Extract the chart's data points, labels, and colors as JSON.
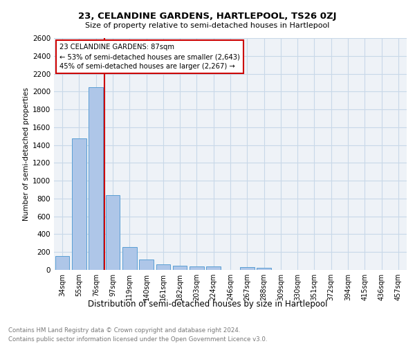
{
  "title": "23, CELANDINE GARDENS, HARTLEPOOL, TS26 0ZJ",
  "subtitle": "Size of property relative to semi-detached houses in Hartlepool",
  "xlabel_below": "Distribution of semi-detached houses by size in Hartlepool",
  "ylabel": "Number of semi-detached properties",
  "categories": [
    "34sqm",
    "55sqm",
    "76sqm",
    "97sqm",
    "119sqm",
    "140sqm",
    "161sqm",
    "182sqm",
    "203sqm",
    "224sqm",
    "246sqm",
    "267sqm",
    "288sqm",
    "309sqm",
    "330sqm",
    "351sqm",
    "372sqm",
    "394sqm",
    "415sqm",
    "436sqm",
    "457sqm"
  ],
  "bar_values": [
    155,
    1475,
    2050,
    840,
    255,
    120,
    65,
    45,
    38,
    35,
    0,
    28,
    22,
    0,
    0,
    0,
    0,
    0,
    0,
    0,
    0
  ],
  "bar_color": "#aec6e8",
  "bar_edge_color": "#5a9fd4",
  "property_name": "23 CELANDINE GARDENS: 87sqm",
  "annotation_line1": "← 53% of semi-detached houses are smaller (2,643)",
  "annotation_line2": "45% of semi-detached houses are larger (2,267) →",
  "red_line_color": "#cc0000",
  "red_line_x": 2.524,
  "ylim": [
    0,
    2600
  ],
  "yticks": [
    0,
    200,
    400,
    600,
    800,
    1000,
    1200,
    1400,
    1600,
    1800,
    2000,
    2200,
    2400,
    2600
  ],
  "grid_color": "#c8d8e8",
  "footnote_line1": "Contains HM Land Registry data © Crown copyright and database right 2024.",
  "footnote_line2": "Contains public sector information licensed under the Open Government Licence v3.0.",
  "bg_color": "#eef2f7"
}
